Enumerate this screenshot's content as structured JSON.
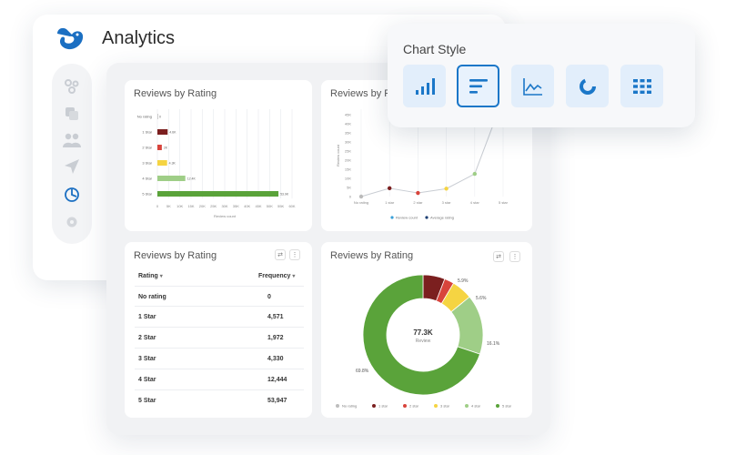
{
  "app": {
    "title": "Analytics"
  },
  "sidebar": {
    "items": [
      {
        "icon": "nodes-icon"
      },
      {
        "icon": "copy-icon"
      },
      {
        "icon": "users-icon"
      },
      {
        "icon": "send-icon"
      },
      {
        "icon": "analytics-icon",
        "active": true
      },
      {
        "icon": "settings-icon"
      }
    ]
  },
  "chart_style": {
    "title": "Chart Style",
    "options": [
      {
        "icon": "column-chart-icon"
      },
      {
        "icon": "bar-chart-icon",
        "selected": true
      },
      {
        "icon": "line-chart-icon"
      },
      {
        "icon": "donut-chart-icon"
      },
      {
        "icon": "table-grid-icon"
      }
    ]
  },
  "cards": {
    "bar": {
      "title": "Reviews by Rating"
    },
    "line": {
      "title": "Reviews by Ro"
    },
    "table": {
      "title": "Reviews by Rating"
    },
    "donut": {
      "title": "Reviews by Rating"
    }
  },
  "table": {
    "col_rating": "Rating",
    "col_frequency": "Frequency",
    "rows": [
      {
        "rating": "No rating",
        "frequency": "0"
      },
      {
        "rating": "1 Star",
        "frequency": "4,571"
      },
      {
        "rating": "2 Star",
        "frequency": "1,972"
      },
      {
        "rating": "3 Star",
        "frequency": "4,330"
      },
      {
        "rating": "4 Star",
        "frequency": "12,444"
      },
      {
        "rating": "5 Star",
        "frequency": "53,947"
      }
    ]
  },
  "chart_data": [
    {
      "type": "bar",
      "orientation": "horizontal",
      "title": "Reviews by Rating",
      "categories": [
        "No rating",
        "1 Star",
        "2 Star",
        "3 Star",
        "4 Star",
        "5 Star"
      ],
      "values": [
        0,
        4571,
        1972,
        4330,
        12444,
        53947
      ],
      "value_labels": [
        "0",
        "4.6K",
        "2K",
        "4.3K",
        "12.4K",
        "53.9K"
      ],
      "colors": [
        "#999999",
        "#7b1f1f",
        "#d8443c",
        "#f5d442",
        "#9fce87",
        "#5aa33a"
      ],
      "x_ticks": [
        "0",
        "5K",
        "10K",
        "15K",
        "20K",
        "25K",
        "30K",
        "35K",
        "40K",
        "45K",
        "50K",
        "55K",
        "60K"
      ],
      "xlim": [
        0,
        60000
      ],
      "xlabel": "Review count",
      "grid": true
    },
    {
      "type": "line",
      "title": "Reviews by Ro",
      "categories": [
        "No rating",
        "1 star",
        "2 star",
        "3 star",
        "4 star",
        "5 star"
      ],
      "values": [
        0,
        4571,
        1972,
        4330,
        12444,
        53947
      ],
      "point_colors": [
        "#bbbbbb",
        "#7b1f1f",
        "#d8443c",
        "#f5d442",
        "#9fce87",
        "#5aa33a"
      ],
      "y_ticks": [
        "0",
        "5K",
        "10K",
        "15K",
        "20K",
        "25K",
        "30K",
        "35K",
        "40K",
        "45K"
      ],
      "ylim": [
        0,
        45000
      ],
      "ylabel": "Review count",
      "legend": [
        "Review count",
        "Average rating"
      ],
      "legend_colors": [
        "#3aa0d8",
        "#1d3f73"
      ]
    },
    {
      "type": "pie",
      "donut": true,
      "center_value": "77.3K",
      "center_label": "Review",
      "slices": [
        {
          "label": "No rating",
          "value": 0,
          "color": "#bdbdbd"
        },
        {
          "label": "1 star",
          "value": 5.9,
          "color": "#7b1f1f"
        },
        {
          "label": "2 star",
          "value": 2.6,
          "color": "#d8443c"
        },
        {
          "label": "3 star",
          "value": 5.6,
          "color": "#f5d442"
        },
        {
          "label": "4 star",
          "value": 16.1,
          "color": "#9fce87"
        },
        {
          "label": "5 star",
          "value": 69.8,
          "color": "#5aa33a"
        }
      ],
      "slice_labels": [
        "5.9%",
        "5.6%",
        "16.1%",
        "69.8%"
      ],
      "legend": [
        "No rating",
        "1 star",
        "2 star",
        "3 star",
        "4 star",
        "5 star"
      ],
      "legend_placement": "bottom"
    }
  ]
}
